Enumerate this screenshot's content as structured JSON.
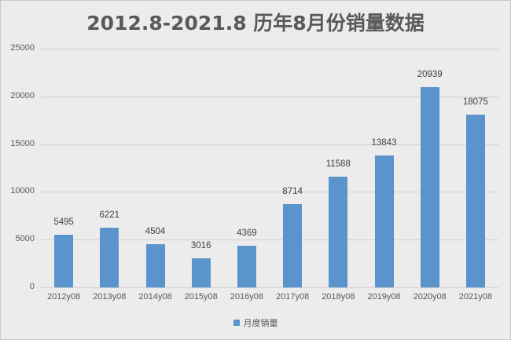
{
  "chart_data": {
    "type": "bar",
    "title": "2012.8-2021.8 历年8月份销量数据",
    "categories": [
      "2012y08",
      "2013y08",
      "2014y08",
      "2015y08",
      "2016y08",
      "2017y08",
      "2018y08",
      "2019y08",
      "2020y08",
      "2021y08"
    ],
    "series": [
      {
        "name": "月度销量",
        "values": [
          5495,
          6221,
          4504,
          3016,
          4369,
          8714,
          11588,
          13843,
          20939,
          18075
        ],
        "color": "#5b93cc"
      }
    ],
    "values": [
      5495,
      6221,
      4504,
      3016,
      4369,
      8714,
      11588,
      13843,
      20939,
      18075
    ],
    "xlabel": "",
    "ylabel": "",
    "ylim": [
      0,
      25000
    ],
    "yticks": [
      "0",
      "5000",
      "10000",
      "15000",
      "20000",
      "25000"
    ],
    "grid": true,
    "legend_position": "bottom",
    "data_labels": true
  },
  "legend": {
    "label": "月度销量"
  }
}
